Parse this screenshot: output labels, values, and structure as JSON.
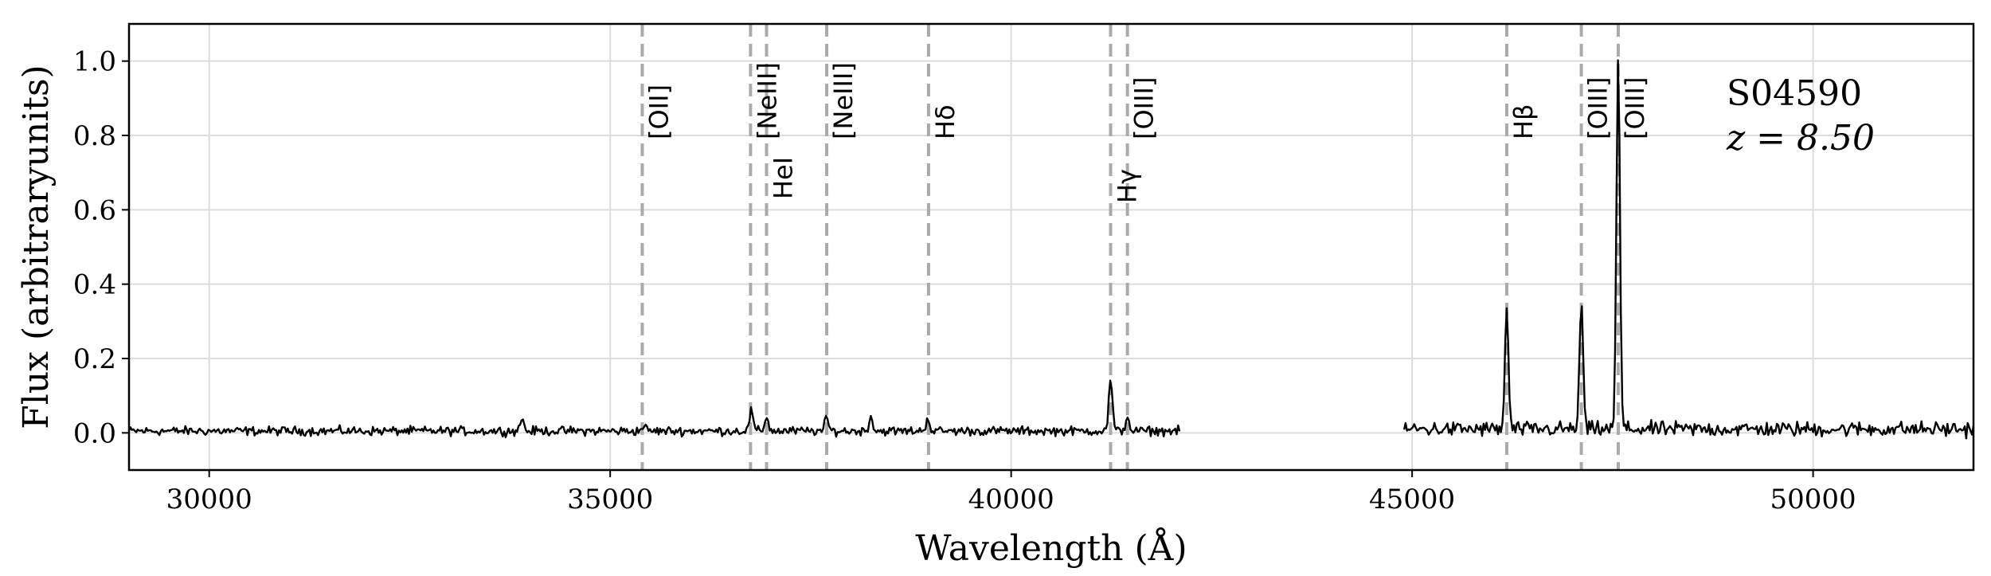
{
  "chart_data": {
    "type": "line",
    "xlabel": "Wavelength (Å)",
    "ylabel": "Flux (arbitraryunits)",
    "xlim": [
      29000,
      52000
    ],
    "ylim": [
      -0.1,
      1.1
    ],
    "xticks": [
      30000,
      35000,
      40000,
      45000,
      50000
    ],
    "yticks": [
      0.0,
      0.2,
      0.4,
      0.6,
      0.8,
      1.0
    ],
    "xtick_labels": [
      "30000",
      "35000",
      "40000",
      "45000",
      "50000"
    ],
    "ytick_labels": [
      "0.0",
      "0.2",
      "0.4",
      "0.6",
      "0.8",
      "1.0"
    ],
    "grid": true,
    "object_name": "S04590",
    "redshift_label": "z = 8.50",
    "line_color": "#000000",
    "marker_color": "#aaaaaa",
    "emission_lines": [
      {
        "name": "[OII]",
        "x": 35400
      },
      {
        "name": "[NeIII]",
        "x": 36750
      },
      {
        "name": "HeI",
        "x": 36950
      },
      {
        "name": "[NeIII]",
        "x": 37700
      },
      {
        "name": "Hδ",
        "x": 38970
      },
      {
        "name": "Hγ",
        "x": 41240
      },
      {
        "name": "[OIII]",
        "x": 41450
      },
      {
        "name": "Hβ",
        "x": 46180
      },
      {
        "name": "[OIII]",
        "x": 47110
      },
      {
        "name": "[OIII]",
        "x": 47570
      }
    ],
    "series": [
      {
        "segments": [
          {
            "x_start": 29000,
            "x_end": 42100,
            "baseline": 0.005,
            "peaks": [
              [
                33900,
                0.04
              ],
              [
                35420,
                0.02
              ],
              [
                36760,
                0.06
              ],
              [
                36950,
                0.045
              ],
              [
                37700,
                0.04
              ],
              [
                38250,
                0.045
              ],
              [
                38960,
                0.04
              ],
              [
                41240,
                0.145
              ],
              [
                41450,
                0.045
              ]
            ]
          },
          {
            "x_start": 44900,
            "x_end": 52000,
            "baseline": 0.01,
            "peaks": [
              [
                46180,
                0.33
              ],
              [
                47110,
                0.35
              ],
              [
                47570,
                1.0
              ]
            ]
          }
        ]
      }
    ]
  }
}
